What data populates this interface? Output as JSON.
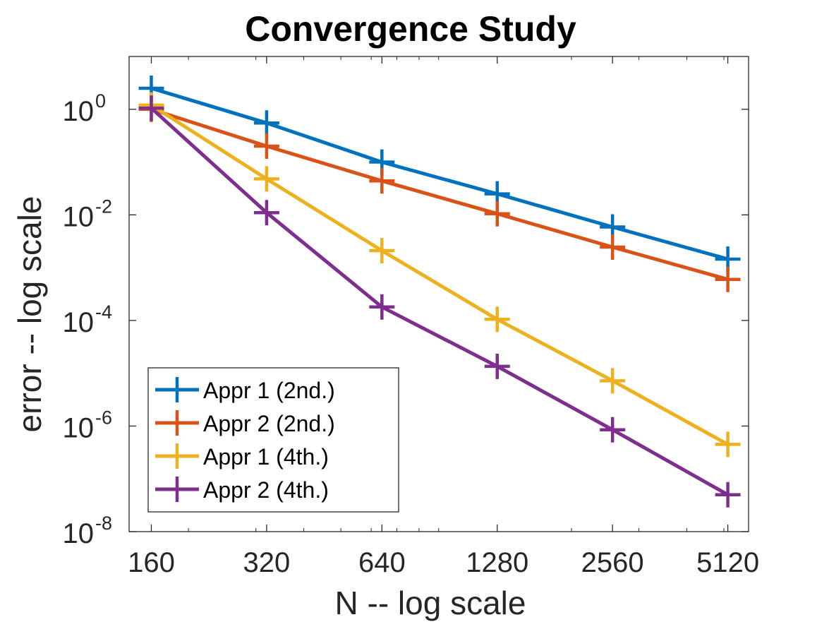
{
  "chart_data": {
    "type": "line",
    "title": "Convergence Study",
    "xlabel": "N -- log scale",
    "ylabel": "error -- log scale",
    "x_scale": "log",
    "y_scale": "log",
    "x": [
      160,
      320,
      640,
      1280,
      2560,
      5120
    ],
    "x_tick_labels": [
      "160",
      "320",
      "640",
      "1280",
      "2560",
      "5120"
    ],
    "y_ticks": [
      {
        "base": "10",
        "exp": "0",
        "value": 1
      },
      {
        "base": "10",
        "exp": "-2",
        "value": 0.01
      },
      {
        "base": "10",
        "exp": "-4",
        "value": 0.0001
      },
      {
        "base": "10",
        "exp": "-6",
        "value": 1e-06
      },
      {
        "base": "10",
        "exp": "-8",
        "value": 1e-08
      }
    ],
    "xlim": [
      140,
      5800
    ],
    "ylim": [
      1e-08,
      10
    ],
    "grid": false,
    "legend_position": "bottom-left",
    "series": [
      {
        "name": "Appr 1 (2nd.)",
        "color": "#0072BD",
        "values": [
          2.5,
          0.55,
          0.1,
          0.025,
          0.0059,
          0.00145
        ]
      },
      {
        "name": "Appr 2 (2nd.)",
        "color": "#D95319",
        "values": [
          1.0,
          0.2,
          0.044,
          0.0105,
          0.00245,
          0.0006
        ]
      },
      {
        "name": "Appr 1 (4th.)",
        "color": "#EDB120",
        "values": [
          1.2,
          0.048,
          0.0021,
          0.000105,
          7.2e-06,
          4.5e-07
        ]
      },
      {
        "name": "Appr 2 (4th.)",
        "color": "#7E2F8E",
        "values": [
          1.05,
          0.011,
          0.00018,
          1.35e-05,
          8.5e-07,
          5e-08
        ]
      }
    ]
  }
}
